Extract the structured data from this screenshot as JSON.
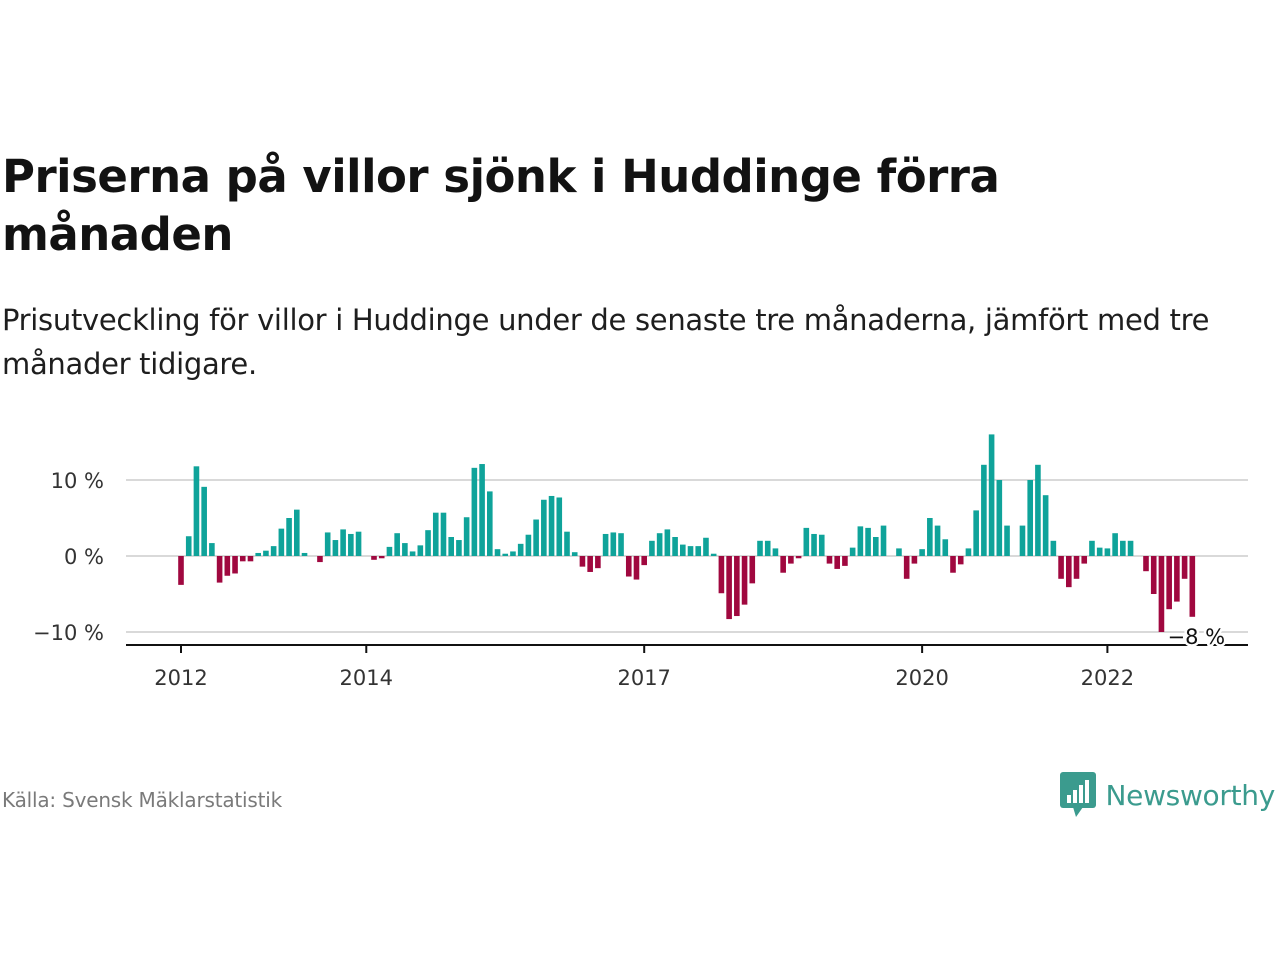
{
  "title": "Priserna på villor sjönk i Huddinge förra månaden",
  "subtitle": "Prisutveckling för villor i Huddinge under de senaste tre månaderna, jämfört med tre månader tidigare.",
  "source": "Källa: Svensk Mäklarstatistik",
  "brand": {
    "name": "Newsworthy",
    "icon": "newsworthy-bar-chart-icon"
  },
  "colors": {
    "positive": "#0fa39a",
    "negative": "#a0083f",
    "grid": "#d9d9d9",
    "axis": "#111111",
    "brand": "#3b9b8e"
  },
  "chart_data": {
    "type": "bar",
    "title": "Priserna på villor sjönk i Huddinge förra månaden",
    "xlabel": "",
    "ylabel": "",
    "y_ticks": [
      10,
      0,
      -10
    ],
    "y_tick_labels": [
      "10 %",
      "0 %",
      "−10 %"
    ],
    "ylim": [
      -11.5,
      16.5
    ],
    "x_ticks": [
      {
        "year": 2012,
        "label": "2012"
      },
      {
        "year": 2014,
        "label": "2014"
      },
      {
        "year": 2017,
        "label": "2017"
      },
      {
        "year": 2020,
        "label": "2020"
      },
      {
        "year": 2022,
        "label": "2022"
      }
    ],
    "start": {
      "year": 2012,
      "month": 1
    },
    "end": {
      "year": 2023,
      "month": 2
    },
    "grid": true,
    "legend": "none",
    "last_value_label": "−8 %",
    "values": [
      -3.8,
      2.6,
      11.8,
      9.1,
      1.7,
      -3.5,
      -2.6,
      -2.3,
      -0.7,
      -0.7,
      0.4,
      0.7,
      1.3,
      3.6,
      5.0,
      6.1,
      0.4,
      0,
      -0.8,
      3.1,
      2.1,
      3.5,
      2.9,
      3.2,
      0,
      -0.5,
      -0.3,
      1.2,
      3.0,
      1.7,
      0.6,
      1.4,
      3.4,
      5.7,
      5.7,
      2.5,
      2.1,
      5.1,
      11.6,
      12.1,
      8.5,
      0.9,
      0.3,
      0.6,
      1.6,
      2.8,
      4.8,
      7.4,
      7.9,
      7.7,
      3.2,
      0.5,
      -1.4,
      -2.1,
      -1.6,
      2.9,
      3.1,
      3.0,
      -2.7,
      -3.1,
      -1.2,
      2.0,
      3.0,
      3.5,
      2.5,
      1.5,
      1.3,
      1.3,
      2.4,
      0.3,
      -4.9,
      -8.3,
      -7.9,
      -6.4,
      -3.6,
      2.0,
      2.0,
      1.0,
      -2.2,
      -1.0,
      -0.3,
      3.7,
      2.9,
      2.8,
      -1.0,
      -1.7,
      -1.3,
      1.1,
      3.9,
      3.7,
      2.5,
      4.0,
      0,
      1.0,
      -3.0,
      -1.0,
      0.9,
      5.0,
      4.0,
      2.2,
      -2.2,
      -1.1,
      1.0,
      6.0,
      12.0,
      16.0,
      10.0,
      4.0,
      0,
      4.0,
      10.0,
      12.0,
      8.0,
      2.0,
      -3.0,
      -4.1,
      -3.0,
      -1.0,
      2.0,
      1.1,
      1.0,
      3.0,
      2.0,
      2.0,
      0,
      -2.0,
      -5.0,
      -10.0,
      -7.0,
      -6.0,
      -3.0,
      -8.0
    ]
  }
}
